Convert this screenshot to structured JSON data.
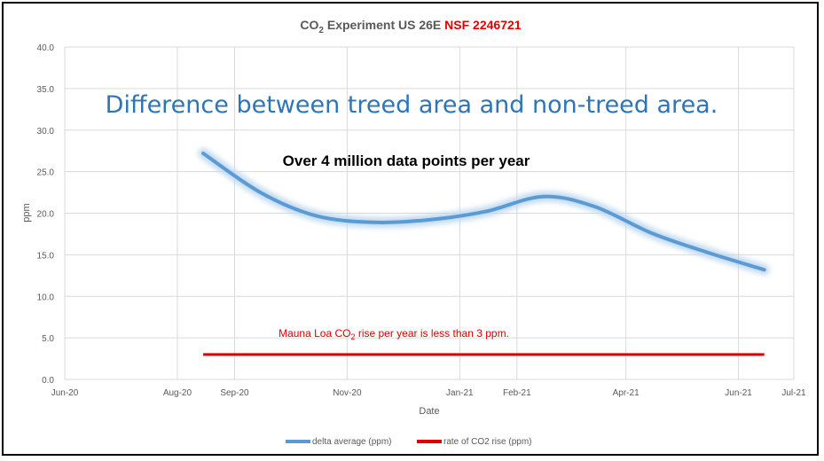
{
  "chart_data": {
    "type": "line",
    "title": {
      "prefix": "CO",
      "sub": "2",
      "middle": " Experiment US 26E ",
      "highlight": "NSF 2246721",
      "highlight_color": "#e00000"
    },
    "annotations": {
      "headline": "Difference between treed area and non-treed area.",
      "headline_color": "#2e75b6",
      "subhead": "Over 4 million data points per year",
      "note_prefix": "Mauna Loa CO",
      "note_sub": "2",
      "note_suffix": " rise per year is less than 3 ppm.",
      "note_color": "#e00000"
    },
    "xlabel": "Date",
    "ylabel": "ppm",
    "x_ticks": [
      "Jun-20",
      "Aug-20",
      "Sep-20",
      "Nov-20",
      "Jan-21",
      "Feb-21",
      "Apr-21",
      "Jun-21",
      "Jul-21"
    ],
    "x_tick_dates": [
      "2020-06-01",
      "2020-08-01",
      "2020-09-01",
      "2020-11-01",
      "2021-01-01",
      "2021-02-01",
      "2021-04-01",
      "2021-06-01",
      "2021-07-01"
    ],
    "y_ticks": [
      "0.0",
      "5.0",
      "10.0",
      "15.0",
      "20.0",
      "25.0",
      "30.0",
      "35.0",
      "40.0"
    ],
    "ylim": [
      0,
      40
    ],
    "grid": true,
    "legend_position": "bottom",
    "series": [
      {
        "name": "delta average (ppm)",
        "color": "#5b9bd5",
        "x": [
          "2020-08-15",
          "2020-09-15",
          "2020-10-15",
          "2020-11-15",
          "2020-12-15",
          "2021-01-15",
          "2021-02-15",
          "2021-03-15",
          "2021-04-15",
          "2021-05-15",
          "2021-06-15"
        ],
        "y": [
          27.2,
          22.5,
          19.7,
          18.9,
          19.2,
          20.2,
          22.0,
          20.8,
          17.6,
          15.3,
          13.2
        ]
      },
      {
        "name": "rate of CO2 rise (ppm)",
        "color": "#e00000",
        "x": [
          "2020-08-15",
          "2021-06-15"
        ],
        "y": [
          3.0,
          3.0
        ]
      }
    ]
  }
}
